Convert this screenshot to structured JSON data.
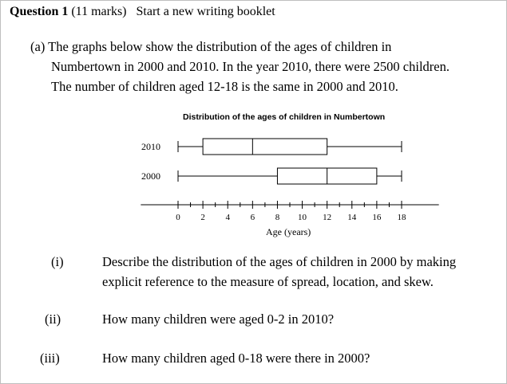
{
  "question": {
    "number": "Question 1",
    "marks": "(11 marks)",
    "instruction": "Start a new writing booklet"
  },
  "part_a": {
    "label": "(a)",
    "line1": "The graphs below show the distribution of the ages of children in",
    "line2": "Numbertown in 2000 and 2010. In the year 2010, there were 2500 children.",
    "line3": "The number of children aged 12-18 is the same in 2000 and 2010."
  },
  "chart_data": {
    "type": "boxplot",
    "title": "Distribution of the ages of children in Numbertown",
    "xlabel": "Age (years)",
    "xlim": [
      -3,
      21
    ],
    "x_ticks": [
      0,
      2,
      4,
      6,
      8,
      10,
      12,
      14,
      16,
      18
    ],
    "x_tick_labels": [
      "0",
      "2",
      "4",
      "6",
      "8",
      "10",
      "12",
      "14",
      "16",
      "18"
    ],
    "series": [
      {
        "name": "2010",
        "min": 0,
        "q1": 2,
        "median": 6,
        "q3": 12,
        "max": 18
      },
      {
        "name": "2000",
        "min": 0,
        "q1": 8,
        "median": 12,
        "q3": 16,
        "max": 18
      }
    ]
  },
  "sub_questions": [
    {
      "num": "(i)",
      "lines": [
        "Describe the distribution of the ages of children in 2000 by making",
        "explicit reference to the measure of spread, location, and skew."
      ]
    },
    {
      "num": "(ii)",
      "lines": [
        "How many children were aged 0-2 in 2010?"
      ]
    },
    {
      "num": "(iii)",
      "lines": [
        "How many children aged 0-18 were there in 2000?"
      ]
    }
  ]
}
